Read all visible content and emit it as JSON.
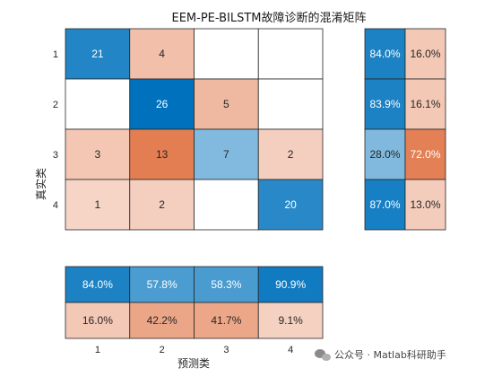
{
  "chart_data": {
    "type": "heatmap",
    "title": "EEM-PE-BILSTM故障诊断的混淆矩阵",
    "xlabel": "预测类",
    "ylabel": "真实类",
    "classes": [
      "1",
      "2",
      "3",
      "4"
    ],
    "matrix": [
      [
        21,
        4,
        0,
        0
      ],
      [
        0,
        26,
        5,
        0
      ],
      [
        3,
        13,
        7,
        2
      ],
      [
        1,
        2,
        0,
        20
      ]
    ],
    "row_summary": {
      "correct": [
        "84.0%",
        "83.9%",
        "28.0%",
        "87.0%"
      ],
      "incorrect": [
        "16.0%",
        "16.1%",
        "72.0%",
        "13.0%"
      ]
    },
    "column_summary": {
      "correct": [
        "84.0%",
        "57.8%",
        "58.3%",
        "90.9%"
      ],
      "incorrect": [
        "16.0%",
        "42.2%",
        "41.7%",
        "9.1%"
      ]
    },
    "colors": {
      "correct_high": "#0072bd",
      "incorrect_high": "#d95319",
      "empty": "#ffffff",
      "grid": "#262626"
    }
  },
  "watermark": {
    "icon": "wechat-icon",
    "text": "公众号 · Matlab科研助手"
  }
}
